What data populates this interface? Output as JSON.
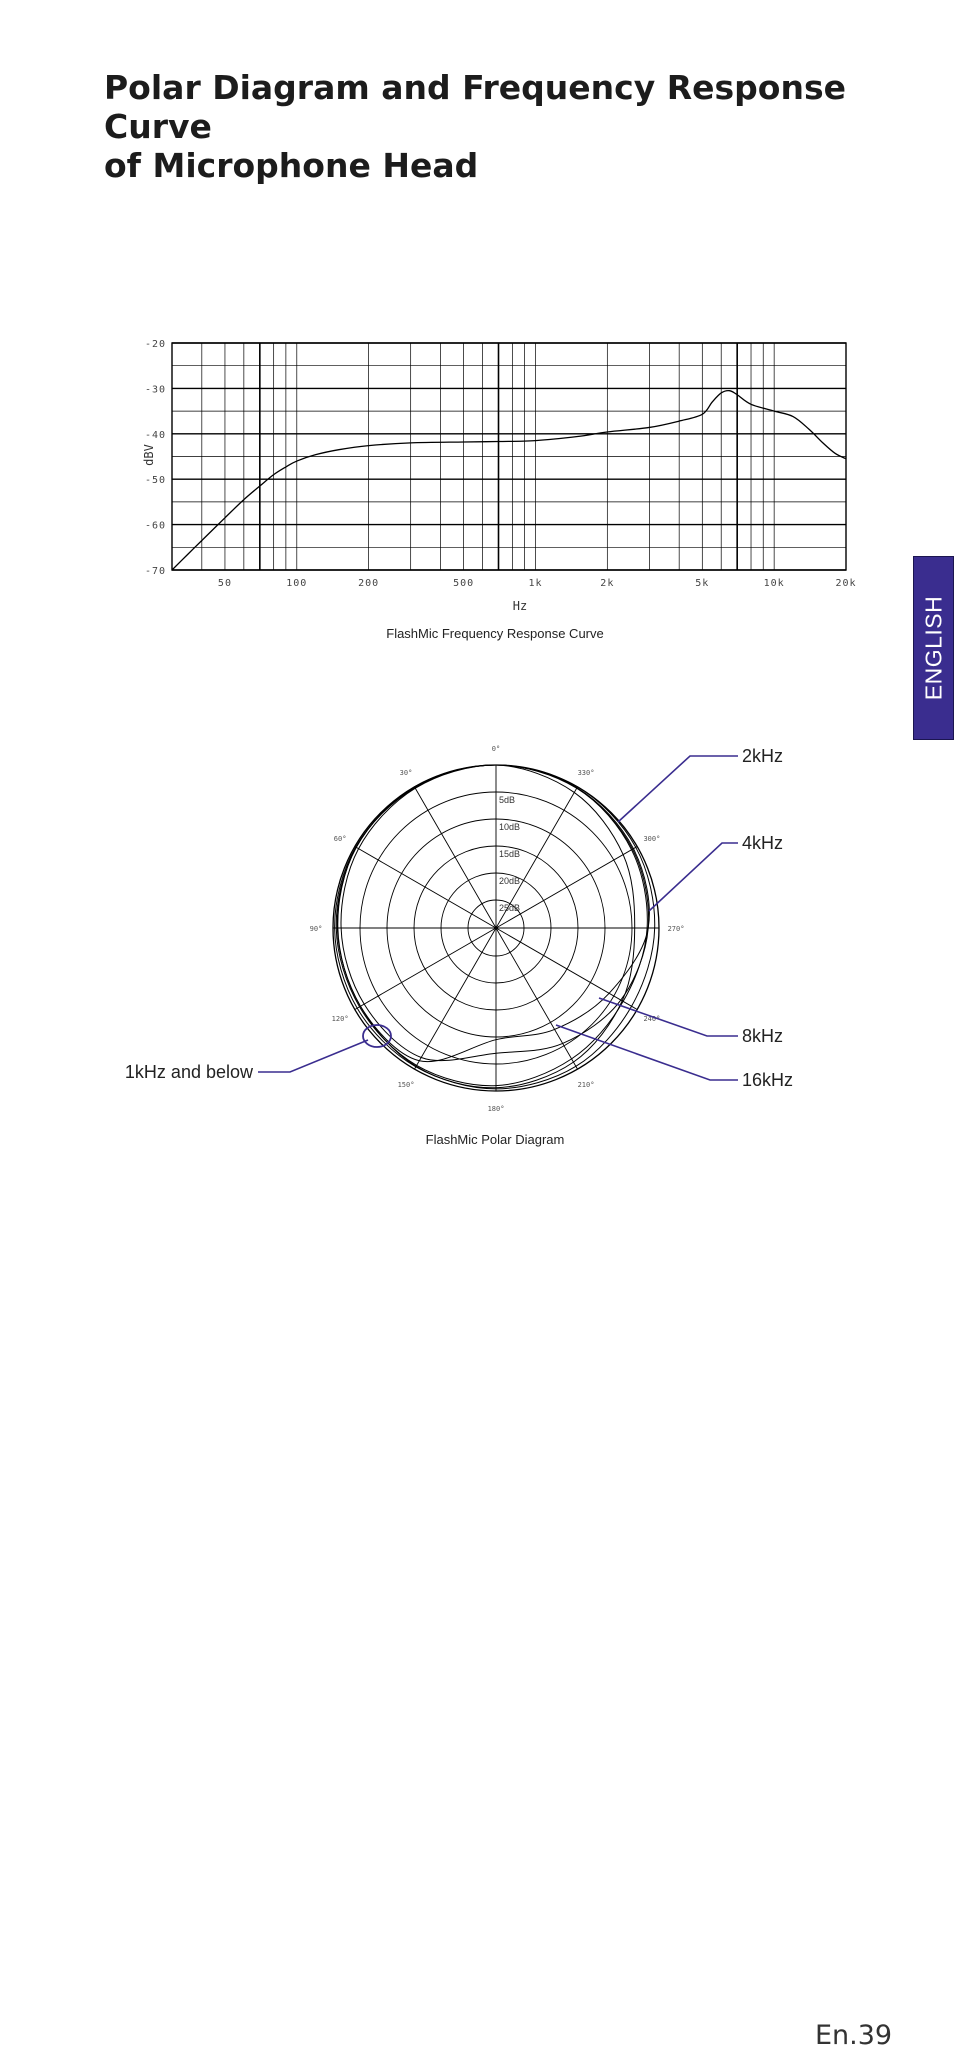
{
  "page": {
    "title_line1": "Polar Diagram and Frequency Response Curve",
    "title_line2": "of Microphone Head",
    "language_tab": "ENGLISH",
    "page_number": "En.39",
    "accent_color": "#3a2d8f"
  },
  "chart_data": [
    {
      "type": "line",
      "title": "FlashMic Frequency Response Curve",
      "xlabel": "Hz",
      "ylabel": "dBV",
      "x_scale": "log",
      "xlim": [
        30,
        20000
      ],
      "ylim": [
        -70,
        -20
      ],
      "grid": true,
      "x_tick_labels": [
        "50",
        "100",
        "200",
        "500",
        "1k",
        "2k",
        "5k",
        "10k",
        "20k"
      ],
      "x_tick_values": [
        50,
        100,
        200,
        500,
        1000,
        2000,
        5000,
        10000,
        20000
      ],
      "y_tick_labels": [
        "-20",
        "-30",
        "-40",
        "-50",
        "-60",
        "-70"
      ],
      "y_tick_values": [
        -20,
        -30,
        -40,
        -50,
        -60,
        -70
      ],
      "series": [
        {
          "x": [
            30,
            35,
            40,
            50,
            60,
            70,
            80,
            90,
            100,
            120,
            150,
            200,
            300,
            500,
            700,
            1000,
            1500,
            2000,
            3000,
            4000,
            5000,
            5500,
            6000,
            6500,
            7000,
            8000,
            10000,
            12000,
            14000,
            16000,
            18000,
            20000
          ],
          "y": [
            -70,
            -66.5,
            -63.5,
            -58.5,
            -54.5,
            -51.5,
            -49,
            -47.3,
            -46,
            -44.6,
            -43.5,
            -42.6,
            -42,
            -41.8,
            -41.7,
            -41.5,
            -40.6,
            -39.6,
            -38.6,
            -37.2,
            -35.7,
            -33,
            -31,
            -30.5,
            -31.4,
            -33.5,
            -35,
            -36.2,
            -39,
            -42,
            -44.3,
            -45.5
          ]
        }
      ]
    },
    {
      "type": "polar",
      "title": "FlashMic Polar Diagram",
      "angle_labels": [
        "0°",
        "30°",
        "60°",
        "90°",
        "120°",
        "150°",
        "180°",
        "210°",
        "240°",
        "270°",
        "300°",
        "330°"
      ],
      "angle_values": [
        0,
        30,
        60,
        90,
        120,
        150,
        180,
        210,
        240,
        270,
        300,
        330
      ],
      "ring_labels": [
        "5dB",
        "10dB",
        "15dB",
        "20dB",
        "25dB"
      ],
      "ring_values": [
        5,
        10,
        15,
        20,
        25
      ],
      "series": [
        {
          "name": "1kHz and below",
          "angles": [
            0,
            30,
            60,
            90,
            120,
            150,
            180,
            210,
            240,
            270,
            300,
            330
          ],
          "attenuation_db": [
            0,
            0,
            0.3,
            0.8,
            1.2,
            0.6,
            0.4,
            0.6,
            1.2,
            0.8,
            0.3,
            0
          ]
        },
        {
          "name": "2kHz",
          "angles": [
            0,
            30,
            60,
            90,
            120,
            150,
            180,
            210,
            240,
            270,
            300,
            330
          ],
          "attenuation_db": [
            0,
            0.2,
            0.2,
            0.3,
            0.5,
            0.5,
            0.6,
            1.5,
            3.2,
            4.5,
            3,
            1.2
          ]
        },
        {
          "name": "4kHz",
          "angles": [
            0,
            30,
            60,
            90,
            120,
            150,
            180,
            210,
            240,
            270,
            300,
            330
          ],
          "attenuation_db": [
            0,
            0,
            0.3,
            0.6,
            1,
            0.8,
            1,
            2.2,
            3,
            2.2,
            1.2,
            0.2
          ]
        },
        {
          "name": "8kHz",
          "angles": [
            0,
            30,
            60,
            90,
            120,
            150,
            180,
            210,
            240,
            270,
            300,
            330
          ],
          "attenuation_db": [
            0,
            0.1,
            0.3,
            0.9,
            1.2,
            1.8,
            9.5,
            8.5,
            6,
            2,
            0.8,
            0.2
          ]
        },
        {
          "name": "16kHz",
          "angles": [
            0,
            30,
            60,
            90,
            120,
            150,
            180,
            210,
            240,
            270,
            300,
            330
          ],
          "attenuation_db": [
            0,
            0.3,
            0.8,
            1.5,
            2,
            2.5,
            7,
            5.5,
            3.5,
            2,
            1,
            0.3
          ]
        }
      ],
      "annotations": [
        "2kHz",
        "4kHz",
        "8kHz",
        "16kHz",
        "1kHz and below"
      ]
    }
  ]
}
